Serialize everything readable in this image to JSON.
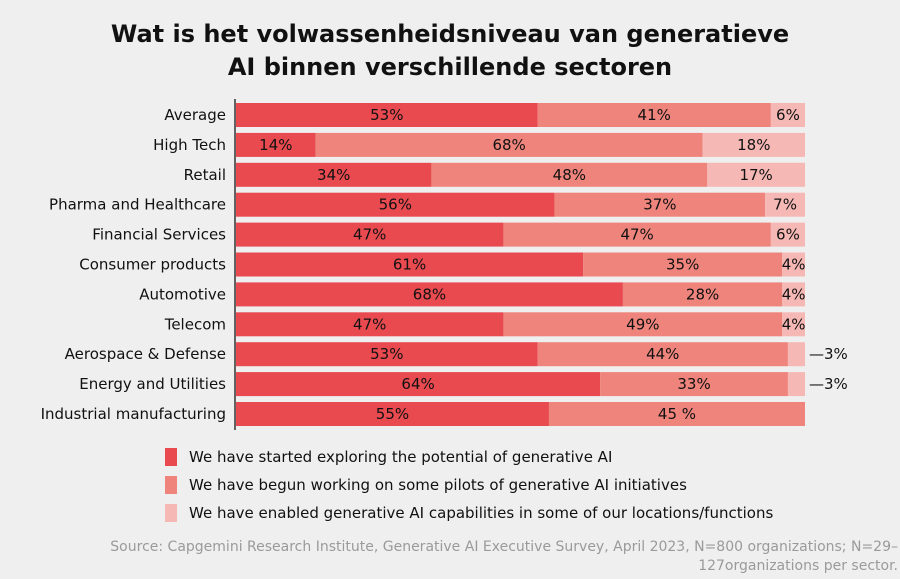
{
  "chart_data": {
    "type": "bar",
    "orientation": "horizontal",
    "stacked": true,
    "title_lines": [
      "Wat is het volwassenheidsniveau van generatieve",
      "AI binnen verschillende sectoren"
    ],
    "categories": [
      "Average",
      "High Tech",
      "Retail",
      "Pharma and Healthcare",
      "Financial Services",
      "Consumer products",
      "Automotive",
      "Telecom",
      "Aerospace & Defense",
      "Energy and Utilities",
      "Industrial manufacturing"
    ],
    "series": [
      {
        "name": "We have started exploring the potential of generative AI",
        "color": "#e84a50",
        "values": [
          53,
          14,
          34,
          56,
          47,
          61,
          68,
          47,
          53,
          64,
          55
        ],
        "labels": [
          "53%",
          "14%",
          "34%",
          "56%",
          "47%",
          "61%",
          "68%",
          "47%",
          "53%",
          "64%",
          "55%"
        ]
      },
      {
        "name": "We have begun working on some pilots of generative AI initiatives",
        "color": "#ef847c",
        "values": [
          41,
          68,
          48,
          37,
          47,
          35,
          28,
          49,
          44,
          33,
          45
        ],
        "labels": [
          "41%",
          "68%",
          "48%",
          "37%",
          "47%",
          "35%",
          "28%",
          "49%",
          "44%",
          "33%",
          "45 %"
        ]
      },
      {
        "name": "We have enabled generative AI capabilities in some of our locations/functions",
        "color": "#f6b8b4",
        "values": [
          6,
          18,
          17,
          7,
          6,
          4,
          4,
          4,
          3,
          3,
          0
        ],
        "labels": [
          "6%",
          "18%",
          "17%",
          "7%",
          "6%",
          "4%",
          "4%",
          "4%",
          "—3%",
          "—3%",
          ""
        ]
      }
    ],
    "xlim": [
      0,
      100
    ],
    "grid": false,
    "legend_position": "bottom"
  },
  "source": "Source: Capgemini Research Institute, Generative AI Executive Survey, April 2023, N=800 organizations; N=29–127organizations per sector."
}
